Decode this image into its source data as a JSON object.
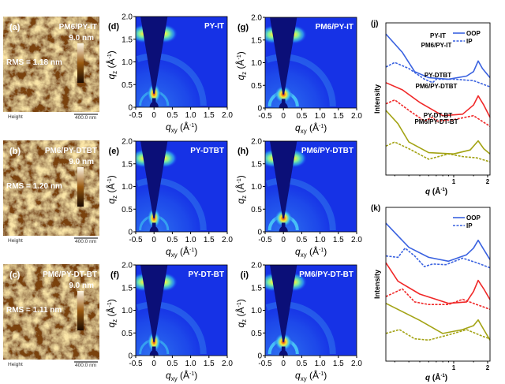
{
  "afm": [
    {
      "panel": "(a)",
      "sample": "PM6/PY-IT",
      "scale_max": "9.0 nm",
      "rms": "RMS = 1.18 nm",
      "height_label": "Height",
      "scale_bar": "400.0 nm"
    },
    {
      "panel": "(b)",
      "sample": "PM6/PY-DTBT",
      "scale_max": "9.0 nm",
      "rms": "RMS = 1.20 nm",
      "height_label": "Height",
      "scale_bar": "400.0 nm"
    },
    {
      "panel": "(c)",
      "sample": "PM6/PY-DT-BT",
      "scale_max": "9.0 nm",
      "rms": "RMS = 1.11 nm",
      "height_label": "Height",
      "scale_bar": "400.0 nm"
    }
  ],
  "giwaxs": {
    "xlabel": "q",
    "xlabel_sub": "xy",
    "xlabel_unit": " (Å",
    "ylabel": "q",
    "ylabel_sub": "z",
    "ylabel_unit": " (Å",
    "unit_exp": "-1",
    "unit_close": ")",
    "xticks": [
      "-0.5",
      "0",
      "0.5",
      "1.0",
      "1.5",
      "2.0"
    ],
    "yticks": [
      "0",
      "0.5",
      "1.0",
      "1.5",
      "2.0"
    ],
    "xlim": [
      -0.5,
      2.0
    ],
    "ylim": [
      0,
      2.0
    ],
    "panels": [
      {
        "panel": "(d)",
        "title": "PY-IT",
        "blend": false
      },
      {
        "panel": "(e)",
        "title": "PY-DTBT",
        "blend": false
      },
      {
        "panel": "(f)",
        "title": "PY-DT-BT",
        "blend": false
      },
      {
        "panel": "(g)",
        "title": "PM6/PY-IT",
        "blend": true
      },
      {
        "panel": "(h)",
        "title": "PM6/PY-DTBT",
        "blend": true
      },
      {
        "panel": "(i)",
        "title": "PM6/PY-DT-BT",
        "blend": true
      }
    ],
    "colors": {
      "background": "#1632e6",
      "wedge": "#0b0f78",
      "peak": "#f4ee30",
      "hot": "#e83010"
    }
  },
  "chart_data": [
    {
      "type": "line",
      "panel": "(j)",
      "xlabel": "q",
      "xlabel_unit": " (Å",
      "unit_exp": "-1",
      "unit_close": ")",
      "ylabel": "Intensity",
      "xscale": "log",
      "xlim": [
        0.25,
        2.1
      ],
      "ylim": [
        0,
        100
      ],
      "xticks": [
        "1",
        "2"
      ],
      "legend": {
        "position": "top-right",
        "entries": [
          {
            "label": "OOP",
            "style": "solid"
          },
          {
            "label": "IP",
            "style": "dashed"
          }
        ]
      },
      "groups": [
        {
          "label": "PY-IT",
          "color": "#3a62e0",
          "oop": {
            "x": [
              0.25,
              0.35,
              0.45,
              0.6,
              0.9,
              1.3,
              1.5,
              1.65,
              1.8,
              2.1
            ],
            "y": [
              92.7,
              80.6,
              68,
              64,
              63,
              65,
              68,
              75,
              70,
              64
            ]
          },
          "ip": {
            "x": [
              0.25,
              0.3,
              0.4,
              0.55,
              0.65,
              0.7,
              1.0,
              1.5,
              2.1
            ],
            "y": [
              71,
              74,
              70,
              63,
              60.7,
              63,
              63,
              62,
              58
            ]
          }
        },
        {
          "label": "PY-DTBT",
          "color": "#f02828",
          "oop": {
            "x": [
              0.25,
              0.35,
              0.5,
              0.8,
              1.2,
              1.5,
              1.65,
              1.85,
              2.1
            ],
            "y": [
              60.7,
              56,
              47.7,
              39,
              40,
              46,
              52,
              46,
              38
            ]
          },
          "ip": {
            "x": [
              0.25,
              0.3,
              0.4,
              0.55,
              0.65,
              0.7,
              1.0,
              1.5,
              2.1
            ],
            "y": [
              46.8,
              49.4,
              42.5,
              35.5,
              38,
              35.5,
              36.4,
              39,
              32
            ]
          }
        },
        {
          "label": "PY-DT-BT",
          "color": "#a3a314",
          "oop": {
            "x": [
              0.25,
              0.32,
              0.4,
              0.6,
              1.0,
              1.4,
              1.65,
              1.85,
              2.1
            ],
            "y": [
              42.5,
              33.8,
              21.7,
              14.7,
              13.9,
              16.5,
              22.5,
              17.3,
              13.9
            ]
          },
          "ip": {
            "x": [
              0.25,
              0.3,
              0.4,
              0.6,
              0.9,
              1.2,
              1.6,
              2.1
            ],
            "y": [
              19,
              21.7,
              17.3,
              10.4,
              13.9,
              12.1,
              11.3,
              8.7
            ]
          }
        }
      ]
    },
    {
      "type": "line",
      "panel": "(k)",
      "xlabel": "q",
      "xlabel_unit": " (Å",
      "unit_exp": "-1",
      "unit_close": ")",
      "ylabel": "Intensity",
      "xscale": "log",
      "xlim": [
        0.25,
        2.1
      ],
      "ylim": [
        0,
        100
      ],
      "xticks": [
        "1",
        "2"
      ],
      "legend": {
        "position": "top-right",
        "entries": [
          {
            "label": "OOP",
            "style": "solid"
          },
          {
            "label": "IP",
            "style": "dashed"
          }
        ]
      },
      "groups": [
        {
          "label": "PM6/PY-IT",
          "color": "#3a62e0",
          "oop": {
            "x": [
              0.25,
              0.4,
              0.6,
              0.9,
              1.3,
              1.5,
              1.65,
              1.85,
              2.1
            ],
            "y": [
              89.7,
              74,
              67.5,
              65,
              69.2,
              73.5,
              78.6,
              72.6,
              66
            ]
          },
          "ip": {
            "x": [
              0.25,
              0.32,
              0.37,
              0.45,
              0.55,
              0.65,
              0.85,
              1.2,
              1.6,
              2.1
            ],
            "y": [
              68.4,
              67.5,
              73.5,
              68.4,
              61.5,
              63.2,
              62.7,
              67,
              64,
              60.7
            ]
          }
        },
        {
          "label": "PM6/PY-DTBT",
          "color": "#f02828",
          "oop": {
            "x": [
              0.25,
              0.32,
              0.5,
              0.9,
              1.3,
              1.5,
              1.65,
              1.85,
              2.1
            ],
            "y": [
              64,
              52,
              43.6,
              37.6,
              38.5,
              45.3,
              52.5,
              47,
              40
            ]
          },
          "ip": {
            "x": [
              0.25,
              0.35,
              0.45,
              0.6,
              0.9,
              1.2,
              1.6,
              2.1
            ],
            "y": [
              42,
              47,
              38.5,
              36.8,
              36.8,
              40.2,
              36.8,
              33.7
            ]
          }
        },
        {
          "label": "PM6/PY-DT-BT",
          "color": "#a3a314",
          "oop": {
            "x": [
              0.25,
              0.5,
              0.8,
              1.2,
              1.5,
              1.65,
              1.85,
              2.1
            ],
            "y": [
              37.6,
              26.5,
              18,
              20.5,
              23.1,
              26.8,
              20.5,
              13.7
            ]
          },
          "ip": {
            "x": [
              0.25,
              0.33,
              0.45,
              0.6,
              0.9,
              1.3,
              1.8,
              2.1
            ],
            "y": [
              18,
              20.5,
              14.5,
              13.7,
              17.1,
              20.5,
              16.2,
              14.5
            ]
          }
        }
      ]
    }
  ]
}
